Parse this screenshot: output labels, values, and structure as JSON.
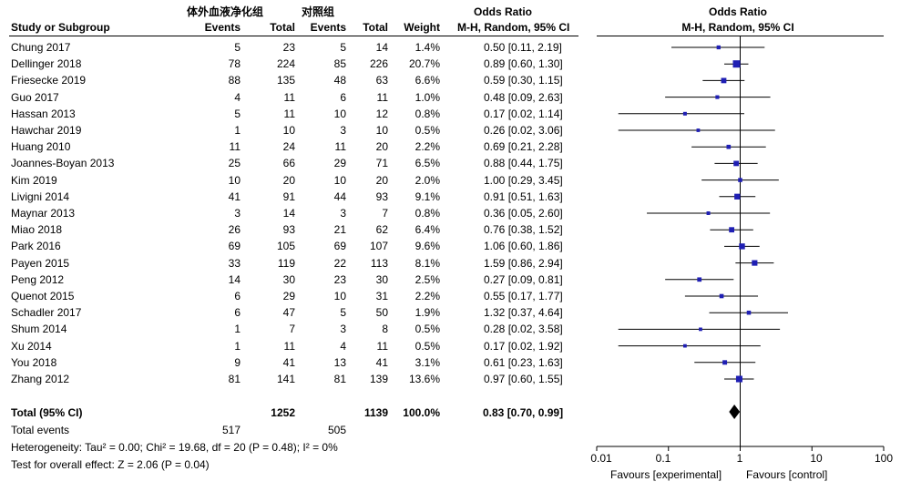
{
  "header": {
    "group1_name": "体外血液净化组",
    "group2_name": "对照组",
    "study_col": "Study or Subgroup",
    "events1": "Events",
    "total1": "Total",
    "events2": "Events",
    "total2": "Total",
    "weight": "Weight",
    "or_title": "Odds Ratio",
    "or_method": "M-H, Random, 95% CI",
    "plot_title": "Odds Ratio",
    "plot_method": "M-H, Random, 95% CI"
  },
  "studies": [
    {
      "name": "Chung  2017",
      "e1": "5",
      "n1": "23",
      "e2": "5",
      "n2": "14",
      "weight": "1.4%",
      "ci": "0.50 [0.11, 2.19]"
    },
    {
      "name": "Dellinger  2018",
      "e1": "78",
      "n1": "224",
      "e2": "85",
      "n2": "226",
      "weight": "20.7%",
      "ci": "0.89 [0.60, 1.30]"
    },
    {
      "name": "Friesecke  2019",
      "e1": "88",
      "n1": "135",
      "e2": "48",
      "n2": "63",
      "weight": "6.6%",
      "ci": "0.59 [0.30, 1.15]"
    },
    {
      "name": "Guo 2017",
      "e1": "4",
      "n1": "11",
      "e2": "6",
      "n2": "11",
      "weight": "1.0%",
      "ci": "0.48 [0.09, 2.63]"
    },
    {
      "name": "Hassan 2013",
      "e1": "5",
      "n1": "11",
      "e2": "10",
      "n2": "12",
      "weight": "0.8%",
      "ci": "0.17 [0.02, 1.14]"
    },
    {
      "name": "Hawchar 2019",
      "e1": "1",
      "n1": "10",
      "e2": "3",
      "n2": "10",
      "weight": "0.5%",
      "ci": "0.26 [0.02, 3.06]"
    },
    {
      "name": "Huang  2010",
      "e1": "11",
      "n1": "24",
      "e2": "11",
      "n2": "20",
      "weight": "2.2%",
      "ci": "0.69 [0.21, 2.28]"
    },
    {
      "name": "Joannes-Boyan 2013",
      "e1": "25",
      "n1": "66",
      "e2": "29",
      "n2": "71",
      "weight": "6.5%",
      "ci": "0.88 [0.44, 1.75]"
    },
    {
      "name": "Kim  2019",
      "e1": "10",
      "n1": "20",
      "e2": "10",
      "n2": "20",
      "weight": "2.0%",
      "ci": "1.00 [0.29, 3.45]"
    },
    {
      "name": "Livigni  2014",
      "e1": "41",
      "n1": "91",
      "e2": "44",
      "n2": "93",
      "weight": "9.1%",
      "ci": "0.91 [0.51, 1.63]"
    },
    {
      "name": "Maynar  2013",
      "e1": "3",
      "n1": "14",
      "e2": "3",
      "n2": "7",
      "weight": "0.8%",
      "ci": "0.36 [0.05, 2.60]"
    },
    {
      "name": "Miao 2018",
      "e1": "26",
      "n1": "93",
      "e2": "21",
      "n2": "62",
      "weight": "6.4%",
      "ci": "0.76 [0.38, 1.52]"
    },
    {
      "name": "Park  2016",
      "e1": "69",
      "n1": "105",
      "e2": "69",
      "n2": "107",
      "weight": "9.6%",
      "ci": "1.06 [0.60, 1.86]"
    },
    {
      "name": "Payen  2015",
      "e1": "33",
      "n1": "119",
      "e2": "22",
      "n2": "113",
      "weight": "8.1%",
      "ci": "1.59 [0.86, 2.94]"
    },
    {
      "name": "Peng    2012",
      "e1": "14",
      "n1": "30",
      "e2": "23",
      "n2": "30",
      "weight": "2.5%",
      "ci": "0.27 [0.09, 0.81]"
    },
    {
      "name": "Quenot   2015",
      "e1": "6",
      "n1": "29",
      "e2": "10",
      "n2": "31",
      "weight": "2.2%",
      "ci": "0.55 [0.17, 1.77]"
    },
    {
      "name": "Schadler 2017",
      "e1": "6",
      "n1": "47",
      "e2": "5",
      "n2": "50",
      "weight": "1.9%",
      "ci": "1.32 [0.37, 4.64]"
    },
    {
      "name": "Shum  2014",
      "e1": "1",
      "n1": "7",
      "e2": "3",
      "n2": "8",
      "weight": "0.5%",
      "ci": "0.28 [0.02, 3.58]"
    },
    {
      "name": "Xu  2014",
      "e1": "1",
      "n1": "11",
      "e2": "4",
      "n2": "11",
      "weight": "0.5%",
      "ci": "0.17 [0.02, 1.92]"
    },
    {
      "name": "You   2018",
      "e1": "9",
      "n1": "41",
      "e2": "13",
      "n2": "41",
      "weight": "3.1%",
      "ci": "0.61 [0.23, 1.63]"
    },
    {
      "name": "Zhang 2012",
      "e1": "81",
      "n1": "141",
      "e2": "81",
      "n2": "139",
      "weight": "13.6%",
      "ci": "0.97 [0.60, 1.55]"
    }
  ],
  "total": {
    "label": "Total (95% CI)",
    "n1": "1252",
    "n2": "1139",
    "weight": "100.0%",
    "ci": "0.83 [0.70, 0.99]"
  },
  "total_events": {
    "label": "Total events",
    "e1": "517",
    "e2": "505"
  },
  "heterogeneity": "Heterogeneity: Tau² = 0.00; Chi² = 19.68, df = 20 (P = 0.48); I² = 0%",
  "overall_effect": "Test for overall effect: Z = 2.06 (P = 0.04)",
  "axis": {
    "ticks": [
      "0.01",
      "0.1",
      "1",
      "10",
      "100"
    ],
    "favours_left": "Favours [experimental]",
    "favours_right": "Favours [control]"
  },
  "colors": {
    "marker": "#1f1fb4",
    "line": "#000000"
  },
  "chart_data": {
    "type": "forest",
    "xscale": "log",
    "xlim": [
      0.01,
      100
    ],
    "null_line": 1,
    "studies": [
      {
        "name": "Chung  2017",
        "or": 0.5,
        "lo": 0.11,
        "hi": 2.19,
        "weight": 1.4
      },
      {
        "name": "Dellinger  2018",
        "or": 0.89,
        "lo": 0.6,
        "hi": 1.3,
        "weight": 20.7
      },
      {
        "name": "Friesecke  2019",
        "or": 0.59,
        "lo": 0.3,
        "hi": 1.15,
        "weight": 6.6
      },
      {
        "name": "Guo 2017",
        "or": 0.48,
        "lo": 0.09,
        "hi": 2.63,
        "weight": 1.0
      },
      {
        "name": "Hassan 2013",
        "or": 0.17,
        "lo": 0.02,
        "hi": 1.14,
        "weight": 0.8
      },
      {
        "name": "Hawchar 2019",
        "or": 0.26,
        "lo": 0.02,
        "hi": 3.06,
        "weight": 0.5
      },
      {
        "name": "Huang  2010",
        "or": 0.69,
        "lo": 0.21,
        "hi": 2.28,
        "weight": 2.2
      },
      {
        "name": "Joannes-Boyan 2013",
        "or": 0.88,
        "lo": 0.44,
        "hi": 1.75,
        "weight": 6.5
      },
      {
        "name": "Kim  2019",
        "or": 1.0,
        "lo": 0.29,
        "hi": 3.45,
        "weight": 2.0
      },
      {
        "name": "Livigni  2014",
        "or": 0.91,
        "lo": 0.51,
        "hi": 1.63,
        "weight": 9.1
      },
      {
        "name": "Maynar  2013",
        "or": 0.36,
        "lo": 0.05,
        "hi": 2.6,
        "weight": 0.8
      },
      {
        "name": "Miao 2018",
        "or": 0.76,
        "lo": 0.38,
        "hi": 1.52,
        "weight": 6.4
      },
      {
        "name": "Park  2016",
        "or": 1.06,
        "lo": 0.6,
        "hi": 1.86,
        "weight": 9.6
      },
      {
        "name": "Payen  2015",
        "or": 1.59,
        "lo": 0.86,
        "hi": 2.94,
        "weight": 8.1
      },
      {
        "name": "Peng    2012",
        "or": 0.27,
        "lo": 0.09,
        "hi": 0.81,
        "weight": 2.5
      },
      {
        "name": "Quenot   2015",
        "or": 0.55,
        "lo": 0.17,
        "hi": 1.77,
        "weight": 2.2
      },
      {
        "name": "Schadler 2017",
        "or": 1.32,
        "lo": 0.37,
        "hi": 4.64,
        "weight": 1.9
      },
      {
        "name": "Shum  2014",
        "or": 0.28,
        "lo": 0.02,
        "hi": 3.58,
        "weight": 0.5
      },
      {
        "name": "Xu  2014",
        "or": 0.17,
        "lo": 0.02,
        "hi": 1.92,
        "weight": 0.5
      },
      {
        "name": "You   2018",
        "or": 0.61,
        "lo": 0.23,
        "hi": 1.63,
        "weight": 3.1
      },
      {
        "name": "Zhang 2012",
        "or": 0.97,
        "lo": 0.6,
        "hi": 1.55,
        "weight": 13.6
      }
    ],
    "pooled": {
      "or": 0.83,
      "lo": 0.7,
      "hi": 0.99
    }
  }
}
